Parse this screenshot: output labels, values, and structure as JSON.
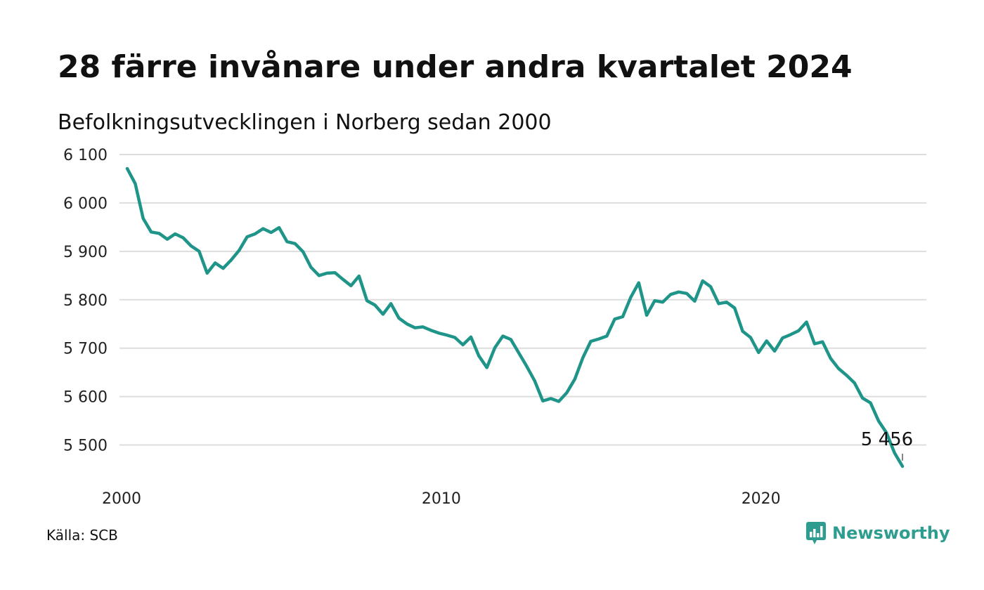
{
  "title": "28 färre invånare under andra kvartalet 2024",
  "subtitle": "Befolkningsutvecklingen i Norberg sedan 2000",
  "source": "Källa: SCB",
  "logo": {
    "name": "Newsworthy",
    "icon": "newsworthy-chart-bubble-icon",
    "color": "#2e9d8f"
  },
  "colors": {
    "line": "#1f9589",
    "grid": "#dddddd"
  },
  "chart_data": {
    "type": "line",
    "title": "28 färre invånare under andra kvartalet 2024",
    "subtitle": "Befolkningsutvecklingen i Norberg sedan 2000",
    "xlabel": "",
    "ylabel": "",
    "xlim": [
      2000,
      2024.25
    ],
    "ylim": [
      5450,
      6100
    ],
    "grid": true,
    "y_ticks": [
      5500,
      5600,
      5700,
      5800,
      5900,
      6000,
      6100
    ],
    "y_tick_labels": [
      "5 500",
      "5 600",
      "5 700",
      "5 800",
      "5 900",
      "6 000",
      "6 100"
    ],
    "x_ticks": [
      2000,
      2010,
      2020
    ],
    "x_tick_labels": [
      "2000",
      "2010",
      "2020"
    ],
    "last_value_label": "5 456",
    "series": [
      {
        "start_year": 2000,
        "step": "quarter",
        "values": [
          6071,
          6040,
          5968,
          5940,
          5937,
          5925,
          5936,
          5928,
          5911,
          5900,
          5855,
          5876,
          5865,
          5882,
          5902,
          5930,
          5936,
          5947,
          5939,
          5949,
          5920,
          5916,
          5899,
          5867,
          5850,
          5855,
          5856,
          5842,
          5829,
          5849,
          5798,
          5789,
          5770,
          5792,
          5762,
          5750,
          5742,
          5744,
          5737,
          5731,
          5727,
          5722,
          5707,
          5723,
          5684,
          5660,
          5701,
          5725,
          5718,
          5690,
          5662,
          5632,
          5591,
          5596,
          5590,
          5608,
          5636,
          5680,
          5714,
          5719,
          5725,
          5760,
          5765,
          5805,
          5835,
          5768,
          5798,
          5795,
          5811,
          5816,
          5813,
          5797,
          5839,
          5827,
          5792,
          5795,
          5783,
          5735,
          5722,
          5691,
          5715,
          5694,
          5721,
          5728,
          5736,
          5754,
          5709,
          5713,
          5679,
          5658,
          5644,
          5628,
          5597,
          5587,
          5550,
          5525,
          5484,
          5456
        ]
      }
    ]
  }
}
